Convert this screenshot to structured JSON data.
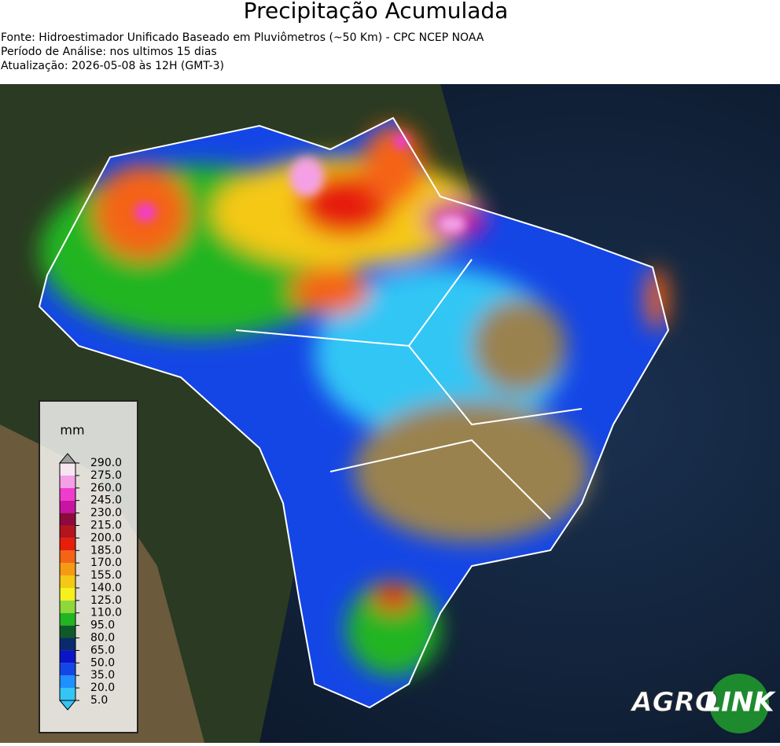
{
  "header": {
    "title": "Precipitação Acumulada",
    "lines": [
      "Fonte: Hidroestimador Unificado Baseado em Pluviômetros (~50 Km) - CPC NCEP NOAA",
      "Período de Análise: nos ultimos 15 dias",
      "Atualização: 2026-05-08 às 12H (GMT-3)"
    ]
  },
  "colorbar": {
    "unit": "mm",
    "ticks": [
      {
        "value": 5,
        "label": "5.0"
      },
      {
        "value": 20,
        "label": "20.0"
      },
      {
        "value": 35,
        "label": "35.0"
      },
      {
        "value": 50,
        "label": "50.0"
      },
      {
        "value": 65,
        "label": "65.0"
      },
      {
        "value": 80,
        "label": "80.0"
      },
      {
        "value": 95,
        "label": "95.0"
      },
      {
        "value": 110,
        "label": "110.0"
      },
      {
        "value": 125,
        "label": "125.0"
      },
      {
        "value": 140,
        "label": "140.0"
      },
      {
        "value": 155,
        "label": "155.0"
      },
      {
        "value": 170,
        "label": "170.0"
      },
      {
        "value": 185,
        "label": "185.0"
      },
      {
        "value": 200,
        "label": "200.0"
      },
      {
        "value": 215,
        "label": "215.0"
      },
      {
        "value": 230,
        "label": "230.0"
      },
      {
        "value": 245,
        "label": "245.0"
      },
      {
        "value": 260,
        "label": "260.0"
      },
      {
        "value": 275,
        "label": "275.0"
      },
      {
        "value": 290,
        "label": "290.0"
      }
    ],
    "colors": [
      "#33c6f5",
      "#1e90ff",
      "#1446e6",
      "#0a14c8",
      "#0a2a6e",
      "#0f5a28",
      "#22b522",
      "#8fd83a",
      "#f5f01e",
      "#f5c814",
      "#f59a14",
      "#f56414",
      "#e61e0a",
      "#b4141e",
      "#8c0a3c",
      "#c814a0",
      "#f03ccd",
      "#f5a0e6",
      "#f5e6f0"
    ],
    "under_color": "#33c6f5",
    "over_color": "#a0a0a0"
  },
  "logo": {
    "part1": "AGRO",
    "part2": "LINK"
  }
}
